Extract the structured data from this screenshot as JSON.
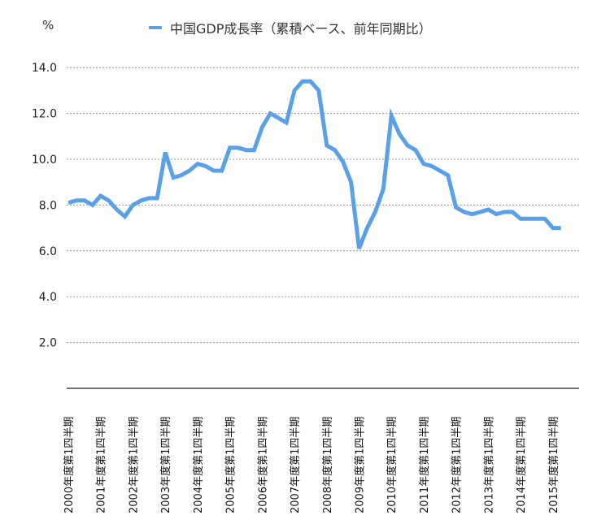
{
  "chart_data": {
    "type": "line",
    "title": "",
    "ylabel": "%",
    "xlabel": "",
    "ylim": [
      0,
      14
    ],
    "yticks": [
      "2.0",
      "4.0",
      "6.0",
      "8.0",
      "10.0",
      "12.0",
      "14.0"
    ],
    "grid": "horizontal dotted",
    "legend_position": "top",
    "x_tick_labels": [
      "2000年度第1四半期",
      "2001年度第1四半期",
      "2002年度第1四半期",
      "2003年度第1四半期",
      "2004年度第1四半期",
      "2005年度第1四半期",
      "2006年度第1四半期",
      "2007年度第1四半期",
      "2008年度第1四半期",
      "2009年度第1四半期",
      "2010年度第1四半期",
      "2011年度第1四半期",
      "2012年度第1四半期",
      "2013年度第1四半期",
      "2014年度第1四半期",
      "2015年度第1四半期"
    ],
    "series": [
      {
        "name": "中国GDP成長率（累積ベース、前年同期比）",
        "color": "#5aa0e6",
        "values": [
          8.1,
          8.2,
          8.2,
          8.0,
          8.4,
          8.2,
          7.8,
          7.5,
          8.0,
          8.2,
          8.3,
          8.3,
          10.3,
          9.2,
          9.3,
          9.5,
          9.8,
          9.7,
          9.5,
          9.5,
          10.5,
          10.5,
          10.4,
          10.4,
          11.4,
          12.0,
          11.8,
          11.6,
          13.0,
          13.4,
          13.4,
          13.0,
          10.6,
          10.4,
          9.9,
          9.0,
          6.1,
          7.0,
          7.7,
          8.7,
          11.9,
          11.1,
          10.6,
          10.4,
          9.8,
          9.7,
          9.5,
          9.3,
          7.9,
          7.7,
          7.6,
          7.7,
          7.8,
          7.6,
          7.7,
          7.7,
          7.4,
          7.4,
          7.4,
          7.4,
          7.0,
          7.0
        ]
      }
    ]
  },
  "unit_label": "%",
  "legend": {
    "label": "中国GDP成長率（累積ベース、前年同期比）",
    "color": "#5aa0e6"
  }
}
